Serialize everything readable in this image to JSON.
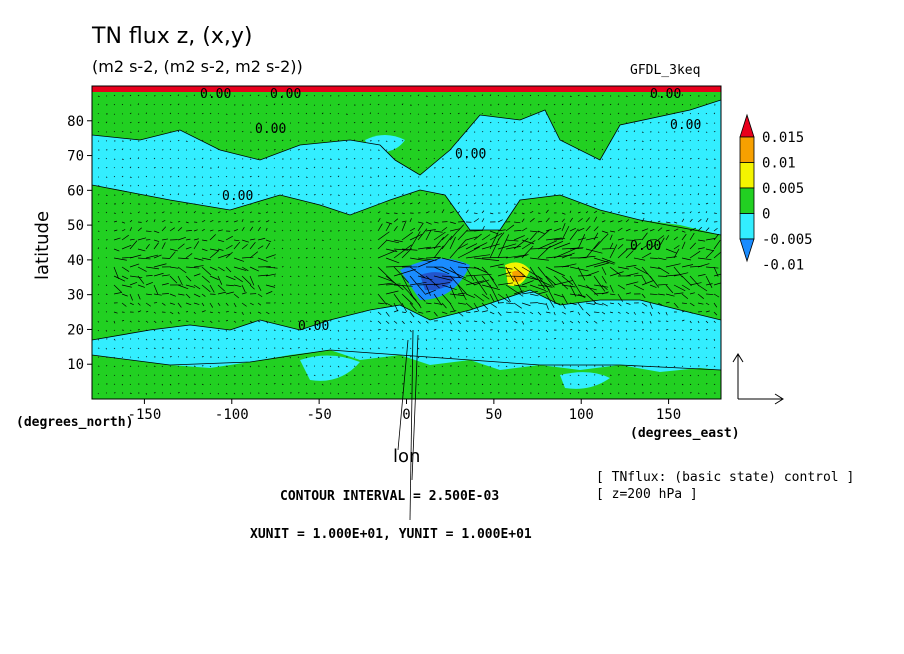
{
  "title": "TN flux z, (x,y)",
  "subtitle": "(m2 s-2, (m2 s-2, m2 s-2))",
  "model": "GFDL_3keq",
  "colors": {
    "red": "#e8001c",
    "orange": "#f7a000",
    "yellow": "#f4f400",
    "green": "#22d022",
    "cyan": "#33eeff",
    "blue": "#1a8cff",
    "darkblue": "#2255cc"
  },
  "chart_data": {
    "type": "heatmap",
    "title": "TN flux z, (x,y)",
    "xlabel": "lon",
    "ylabel": "latitude",
    "x_unit_label": "(degrees_east)",
    "y_unit_label": "(degrees_north)",
    "xlim": [
      -180,
      180
    ],
    "ylim": [
      0,
      90
    ],
    "x_ticks": [
      "-150",
      "-100",
      "-50",
      "0",
      "50",
      "100",
      "150"
    ],
    "x_tick_values": [
      -150,
      -100,
      -50,
      0,
      50,
      100,
      150
    ],
    "y_ticks": [
      "10",
      "20",
      "30",
      "40",
      "50",
      "60",
      "70",
      "80"
    ],
    "y_tick_values": [
      10,
      20,
      30,
      40,
      50,
      60,
      70,
      80
    ],
    "contour_labels": [
      "0.00",
      "0.00",
      "0.00",
      "0.00",
      "0.00",
      "0.00",
      "0.00",
      "0.00",
      "0.00"
    ],
    "colorbar": {
      "labels": [
        "0.015",
        "0.01",
        "0.005",
        "0",
        "-0.005",
        "-0.01"
      ],
      "levels": [
        0.015,
        0.01,
        0.005,
        0,
        -0.005,
        -0.01
      ]
    },
    "vector_field": "arrows showing horizontal wave activity flux; strongest over 0-100E, 20-50N",
    "annotations": {
      "contour_interval": "CONTOUR INTERVAL = 2.500E-03",
      "units": "XUNIT = 1.000E+01, YUNIT = 1.000E+01",
      "note1": "[ TNflux: (basic state) control ]",
      "note2": "[ z=200 hPa ]"
    }
  }
}
